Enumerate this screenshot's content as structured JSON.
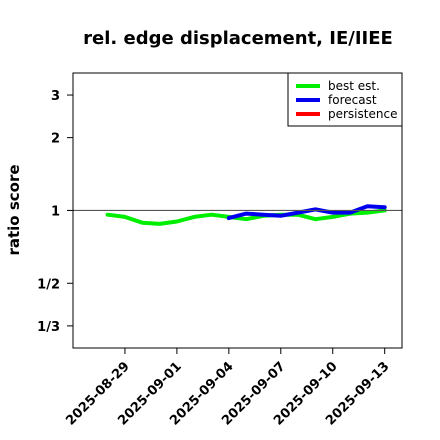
{
  "chart_data": {
    "type": "line",
    "title": "rel. edge displacement, IE/IIEE",
    "xlabel": "",
    "ylabel": "ratio score",
    "x_ticks": [
      "2025-08-29",
      "2025-09-01",
      "2025-09-04",
      "2025-09-07",
      "2025-09-10",
      "2025-09-13"
    ],
    "x_tick_colors": [
      "#000000",
      "#000000",
      "#228B22",
      "#000000",
      "#000000",
      "#000000"
    ],
    "xlim": [
      "2025-08-26",
      "2025-09-14"
    ],
    "y_scale": "log",
    "y_ticks": [
      {
        "value": 0.3333,
        "label": "1/3"
      },
      {
        "value": 0.5,
        "label": "1/2"
      },
      {
        "value": 1,
        "label": "1"
      },
      {
        "value": 2,
        "label": "2"
      },
      {
        "value": 3,
        "label": "3"
      }
    ],
    "ylim": [
      0.27,
      3.7
    ],
    "reference_line": 1,
    "legend_position": "top-right",
    "series": [
      {
        "name": "best est.",
        "color": "#00ee00",
        "points": [
          {
            "x": "2025-08-28",
            "y": 0.96
          },
          {
            "x": "2025-08-29",
            "y": 0.94
          },
          {
            "x": "2025-08-30",
            "y": 0.89
          },
          {
            "x": "2025-08-31",
            "y": 0.88
          },
          {
            "x": "2025-09-01",
            "y": 0.9
          },
          {
            "x": "2025-09-02",
            "y": 0.94
          },
          {
            "x": "2025-09-03",
            "y": 0.96
          },
          {
            "x": "2025-09-04",
            "y": 0.94
          },
          {
            "x": "2025-09-05",
            "y": 0.92
          },
          {
            "x": "2025-09-06",
            "y": 0.95
          },
          {
            "x": "2025-09-07",
            "y": 0.96
          },
          {
            "x": "2025-09-08",
            "y": 0.96
          },
          {
            "x": "2025-09-09",
            "y": 0.92
          },
          {
            "x": "2025-09-10",
            "y": 0.94
          },
          {
            "x": "2025-09-11",
            "y": 0.97
          },
          {
            "x": "2025-09-12",
            "y": 0.98
          },
          {
            "x": "2025-09-13",
            "y": 1.0
          }
        ]
      },
      {
        "name": "forecast",
        "color": "#0000ee",
        "points": [
          {
            "x": "2025-09-04",
            "y": 0.93
          },
          {
            "x": "2025-09-05",
            "y": 0.97
          },
          {
            "x": "2025-09-06",
            "y": 0.96
          },
          {
            "x": "2025-09-07",
            "y": 0.95
          },
          {
            "x": "2025-09-08",
            "y": 0.98
          },
          {
            "x": "2025-09-09",
            "y": 1.01
          },
          {
            "x": "2025-09-10",
            "y": 0.98
          },
          {
            "x": "2025-09-11",
            "y": 0.98
          },
          {
            "x": "2025-09-12",
            "y": 1.04
          },
          {
            "x": "2025-09-13",
            "y": 1.03
          }
        ]
      },
      {
        "name": "persistence",
        "color": "#ff0000",
        "points": []
      }
    ]
  }
}
